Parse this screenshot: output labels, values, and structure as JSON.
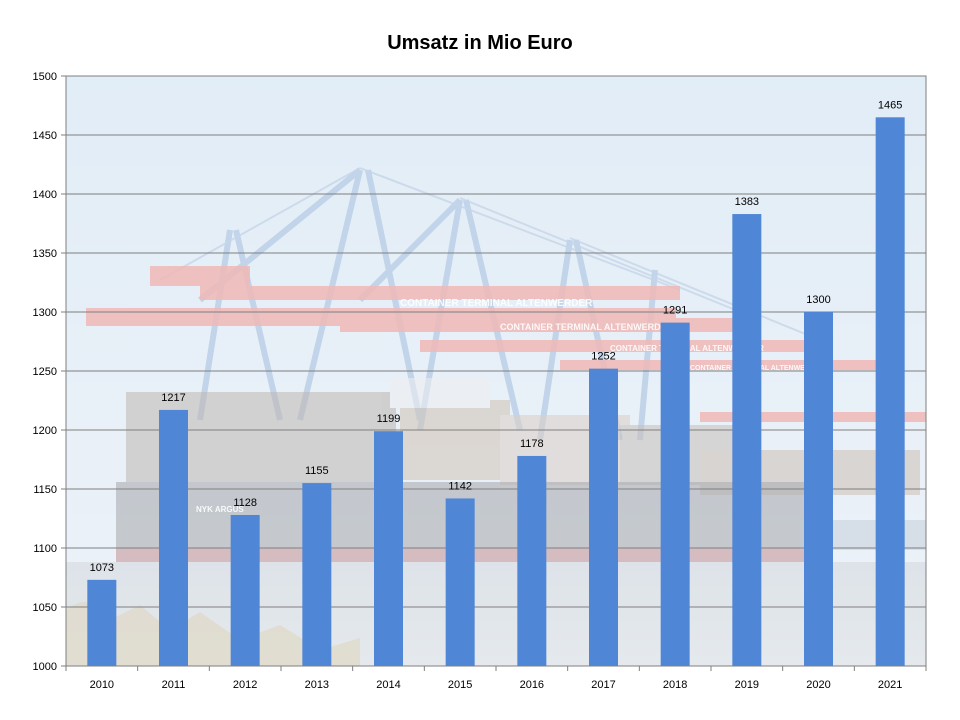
{
  "chart_data": {
    "type": "bar",
    "title": "Umsatz in Mio Euro",
    "categories": [
      "2010",
      "2011",
      "2012",
      "2013",
      "2014",
      "2015",
      "2016",
      "2017",
      "2018",
      "2019",
      "2020",
      "2021"
    ],
    "values": [
      1073,
      1217,
      1128,
      1155,
      1199,
      1142,
      1178,
      1252,
      1291,
      1383,
      1300,
      1465
    ],
    "data_labels": [
      "1073",
      "1217",
      "1128",
      "1155",
      "1199",
      "1142",
      "1178",
      "1252",
      "1291",
      "1383",
      "1300",
      "1465"
    ],
    "ylim": [
      1000,
      1500
    ],
    "yticks": [
      "1000",
      "1050",
      "1100",
      "1150",
      "1200",
      "1250",
      "1300",
      "1350",
      "1400",
      "1450",
      "1500"
    ],
    "grid": true,
    "legend": "none",
    "bar_color": "#4f86d6",
    "background": "faded photo of container terminal with gantry cranes and a container ship",
    "background_text": [
      "CONTAINER TERMINAL ALTENWERDER",
      "CONTAINER TERMINAL ALTENWERDER",
      "CONTAINER TERMINAL ALTENWERDER",
      "CONTAINER TERMINAL ALTENWERDER",
      "NYK ARGUS"
    ]
  }
}
